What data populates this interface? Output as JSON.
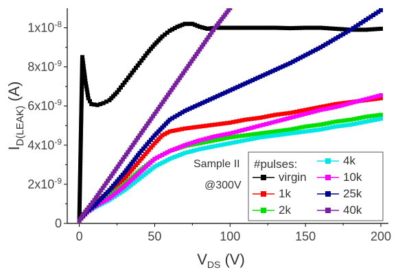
{
  "chart_data": {
    "type": "line",
    "xlabel": {
      "main": "V",
      "sub": "DS",
      "unit": " (V)"
    },
    "ylabel": {
      "main": "I",
      "sub": "D(LEAK)",
      "unit": " (A)"
    },
    "xlim": [
      -8,
      205
    ],
    "ylim": [
      0,
      1.1e-08
    ],
    "x_ticks": [
      0,
      50,
      100,
      150,
      200
    ],
    "x_tick_labels": [
      "0",
      "50",
      "100",
      "150",
      "200"
    ],
    "y_ticks": [
      0,
      2e-09,
      4e-09,
      6e-09,
      8e-09,
      1e-08
    ],
    "y_tick_labels": [
      {
        "base": "0",
        "exp": ""
      },
      {
        "base": "2x10",
        "exp": "-9"
      },
      {
        "base": "4x10",
        "exp": "-9"
      },
      {
        "base": "6x10",
        "exp": "-9"
      },
      {
        "base": "8x10",
        "exp": "-9"
      },
      {
        "base": "1x10",
        "exp": "-8"
      }
    ],
    "annotations": [
      "Sample II",
      "@300V"
    ],
    "legend_title": "#pulses:",
    "legend_position": "bottom-right",
    "grid": false,
    "series": [
      {
        "name": "virgin",
        "color": "#000000",
        "marker": "square",
        "points": [
          [
            0,
            1.5e-10
          ],
          [
            2,
            8.5e-09
          ],
          [
            4,
            7.3e-09
          ],
          [
            6,
            6.4e-09
          ],
          [
            8,
            6.1e-09
          ],
          [
            12,
            6.05e-09
          ],
          [
            16,
            6.15e-09
          ],
          [
            20,
            6.3e-09
          ],
          [
            25,
            6.7e-09
          ],
          [
            30,
            7.2e-09
          ],
          [
            35,
            7.7e-09
          ],
          [
            40,
            8.2e-09
          ],
          [
            45,
            8.7e-09
          ],
          [
            50,
            9.15e-09
          ],
          [
            55,
            9.55e-09
          ],
          [
            60,
            9.85e-09
          ],
          [
            65,
            1.005e-08
          ],
          [
            70,
            1.02e-08
          ],
          [
            75,
            1.02e-08
          ],
          [
            80,
            1.005e-08
          ],
          [
            85,
            9.95e-09
          ],
          [
            90,
            1e-08
          ],
          [
            100,
            1e-08
          ],
          [
            110,
            1e-08
          ],
          [
            120,
            1e-08
          ],
          [
            130,
            1e-08
          ],
          [
            140,
            9.98e-09
          ],
          [
            150,
            1e-08
          ],
          [
            160,
            1e-08
          ],
          [
            170,
            9.95e-09
          ],
          [
            180,
            9.9e-09
          ],
          [
            190,
            9.9e-09
          ],
          [
            200,
            9.95e-09
          ]
        ]
      },
      {
        "name": "1k",
        "color": "#ff0000",
        "marker": "square",
        "points": [
          [
            0,
            1.5e-10
          ],
          [
            5,
            7e-10
          ],
          [
            10,
            1e-09
          ],
          [
            20,
            1.6e-09
          ],
          [
            30,
            2.3e-09
          ],
          [
            40,
            3.2e-09
          ],
          [
            50,
            4.1e-09
          ],
          [
            55,
            4.5e-09
          ],
          [
            60,
            4.7e-09
          ],
          [
            70,
            4.85e-09
          ],
          [
            80,
            4.95e-09
          ],
          [
            90,
            5.05e-09
          ],
          [
            100,
            5.15e-09
          ],
          [
            110,
            5.3e-09
          ],
          [
            120,
            5.4e-09
          ],
          [
            130,
            5.55e-09
          ],
          [
            140,
            5.65e-09
          ],
          [
            150,
            5.8e-09
          ],
          [
            160,
            5.95e-09
          ],
          [
            170,
            6.1e-09
          ],
          [
            180,
            6.2e-09
          ],
          [
            190,
            6.3e-09
          ],
          [
            200,
            6.4e-09
          ]
        ]
      },
      {
        "name": "2k",
        "color": "#00e000",
        "marker": "square",
        "points": [
          [
            0,
            1.5e-10
          ],
          [
            5,
            6e-10
          ],
          [
            10,
            9e-10
          ],
          [
            20,
            1.4e-09
          ],
          [
            30,
            2e-09
          ],
          [
            40,
            2.7e-09
          ],
          [
            50,
            3.3e-09
          ],
          [
            60,
            3.7e-09
          ],
          [
            70,
            3.95e-09
          ],
          [
            80,
            4.1e-09
          ],
          [
            90,
            4.25e-09
          ],
          [
            100,
            4.4e-09
          ],
          [
            110,
            4.5e-09
          ],
          [
            120,
            4.6e-09
          ],
          [
            130,
            4.7e-09
          ],
          [
            140,
            4.8e-09
          ],
          [
            150,
            4.95e-09
          ],
          [
            160,
            5.05e-09
          ],
          [
            170,
            5.2e-09
          ],
          [
            180,
            5.3e-09
          ],
          [
            190,
            5.45e-09
          ],
          [
            200,
            5.55e-09
          ]
        ]
      },
      {
        "name": "4k",
        "color": "#00e5e5",
        "marker": "square",
        "points": [
          [
            0,
            1.5e-10
          ],
          [
            5,
            5.5e-10
          ],
          [
            10,
            8e-10
          ],
          [
            20,
            1.2e-09
          ],
          [
            30,
            1.7e-09
          ],
          [
            40,
            2.3e-09
          ],
          [
            50,
            2.9e-09
          ],
          [
            60,
            3.3e-09
          ],
          [
            70,
            3.6e-09
          ],
          [
            80,
            3.8e-09
          ],
          [
            90,
            3.95e-09
          ],
          [
            100,
            4.1e-09
          ],
          [
            110,
            4.25e-09
          ],
          [
            120,
            4.4e-09
          ],
          [
            130,
            4.5e-09
          ],
          [
            140,
            4.6e-09
          ],
          [
            150,
            4.7e-09
          ],
          [
            160,
            4.8e-09
          ],
          [
            170,
            4.95e-09
          ],
          [
            180,
            5.05e-09
          ],
          [
            190,
            5.2e-09
          ],
          [
            200,
            5.35e-09
          ]
        ]
      },
      {
        "name": "10k",
        "color": "#ff00ff",
        "marker": "square",
        "points": [
          [
            0,
            1.5e-10
          ],
          [
            5,
            5.5e-10
          ],
          [
            10,
            8.5e-10
          ],
          [
            20,
            1.3e-09
          ],
          [
            30,
            1.9e-09
          ],
          [
            40,
            2.6e-09
          ],
          [
            50,
            3.3e-09
          ],
          [
            60,
            3.7e-09
          ],
          [
            70,
            4e-09
          ],
          [
            80,
            4.25e-09
          ],
          [
            90,
            4.45e-09
          ],
          [
            100,
            4.6e-09
          ],
          [
            110,
            4.8e-09
          ],
          [
            120,
            5e-09
          ],
          [
            130,
            5.2e-09
          ],
          [
            140,
            5.4e-09
          ],
          [
            150,
            5.6e-09
          ],
          [
            160,
            5.8e-09
          ],
          [
            170,
            5.95e-09
          ],
          [
            180,
            6.15e-09
          ],
          [
            190,
            6.35e-09
          ],
          [
            200,
            6.55e-09
          ]
        ]
      },
      {
        "name": "25k",
        "color": "#000090",
        "marker": "square",
        "points": [
          [
            0,
            1.5e-10
          ],
          [
            5,
            6e-10
          ],
          [
            10,
            9e-10
          ],
          [
            20,
            1.7e-09
          ],
          [
            30,
            2.6e-09
          ],
          [
            40,
            3.6e-09
          ],
          [
            50,
            4.5e-09
          ],
          [
            60,
            5.3e-09
          ],
          [
            70,
            5.75e-09
          ],
          [
            80,
            6.1e-09
          ],
          [
            90,
            6.45e-09
          ],
          [
            100,
            6.8e-09
          ],
          [
            110,
            7.15e-09
          ],
          [
            120,
            7.5e-09
          ],
          [
            130,
            7.85e-09
          ],
          [
            140,
            8.2e-09
          ],
          [
            150,
            8.6e-09
          ],
          [
            160,
            9e-09
          ],
          [
            170,
            9.45e-09
          ],
          [
            180,
            9.9e-09
          ],
          [
            190,
            1.04e-08
          ],
          [
            200,
            1.09e-08
          ]
        ]
      },
      {
        "name": "40k",
        "color": "#7a1fa2",
        "marker": "square",
        "points": [
          [
            0,
            1.5e-10
          ],
          [
            5,
            7e-10
          ],
          [
            10,
            1.2e-09
          ],
          [
            20,
            2.3e-09
          ],
          [
            30,
            3.4e-09
          ],
          [
            40,
            4.5e-09
          ],
          [
            50,
            5.6e-09
          ],
          [
            60,
            6.7e-09
          ],
          [
            70,
            7.8e-09
          ],
          [
            80,
            8.9e-09
          ],
          [
            90,
            1e-08
          ],
          [
            100,
            1.1e-08
          ]
        ]
      }
    ]
  }
}
